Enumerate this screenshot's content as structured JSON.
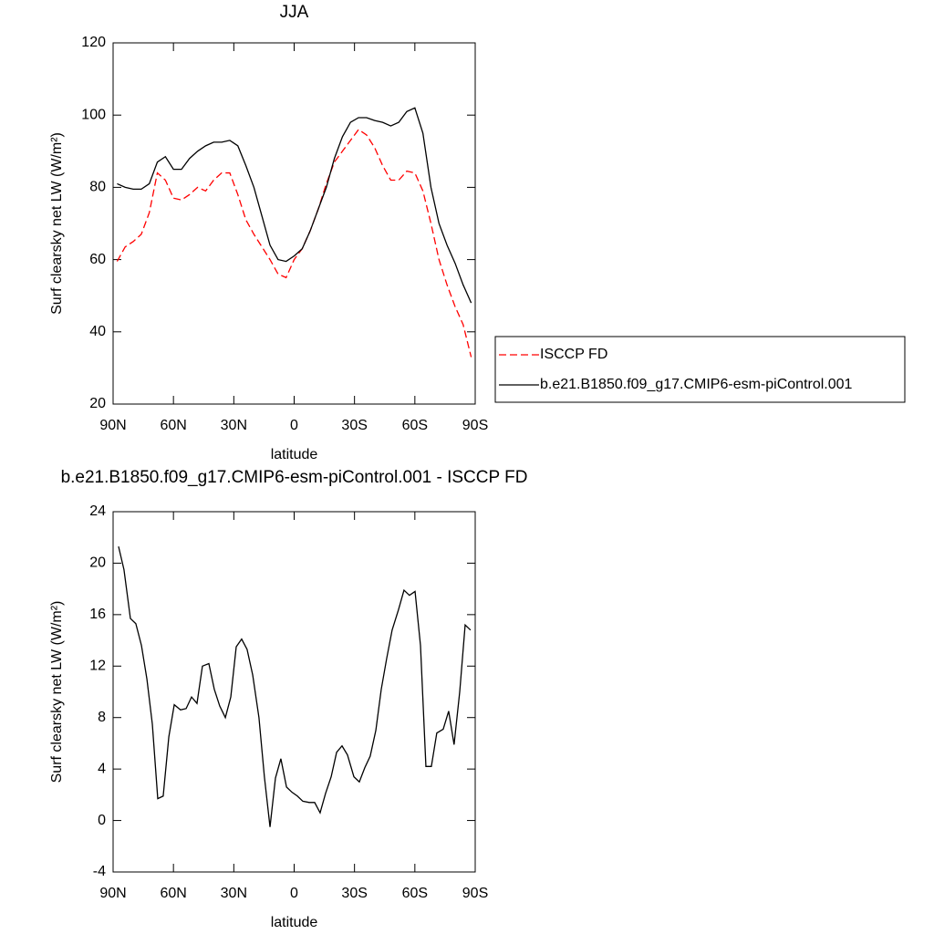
{
  "chart_data": [
    {
      "type": "line",
      "title": "JJA",
      "x_label": "latitude",
      "y_label": "Surf clearsky net LW (W/m²)",
      "x": [
        88,
        84,
        80,
        76,
        72,
        68,
        64,
        60,
        56,
        52,
        48,
        44,
        40,
        36,
        32,
        28,
        24,
        20,
        16,
        12,
        8,
        4,
        0,
        -4,
        -8,
        -12,
        -16,
        -20,
        -24,
        -28,
        -32,
        -36,
        -40,
        -44,
        -48,
        -52,
        -56,
        -60,
        -64,
        -68,
        -72,
        -76,
        -80,
        -84,
        -88
      ],
      "series": [
        {
          "name": "ISCCP FD",
          "color": "#ff0000",
          "line_style": "dashed",
          "values": [
            59.5,
            63.5,
            65,
            67,
            73,
            84,
            82,
            77,
            76.5,
            78,
            80,
            79,
            82,
            84,
            84,
            78,
            71,
            67,
            63.5,
            60,
            56,
            55,
            60,
            63,
            68,
            74,
            81,
            87,
            90,
            93,
            96,
            94.5,
            91,
            86,
            82,
            82,
            84.5,
            84,
            79,
            70,
            60,
            53,
            47,
            42,
            33
          ]
        },
        {
          "name": "b.e21.B1850.f09_g17.CMIP6-esm-piControl.001",
          "color": "#000000",
          "line_style": "solid",
          "values": [
            81,
            80,
            79.5,
            79.5,
            81,
            87,
            88.5,
            85,
            85,
            88,
            90,
            91.5,
            92.5,
            92.5,
            93,
            91.5,
            86,
            80,
            72,
            64,
            60,
            59.5,
            61,
            63,
            68,
            74,
            80,
            88,
            94,
            98,
            99.3,
            99.3,
            98.5,
            98,
            97,
            98,
            101,
            102,
            95,
            80,
            70,
            64,
            59,
            53,
            48
          ]
        }
      ],
      "xlim": [
        90,
        -90
      ],
      "xticks": [
        {
          "value": 90,
          "label": "90N"
        },
        {
          "value": 60,
          "label": "60N"
        },
        {
          "value": 30,
          "label": "30N"
        },
        0,
        {
          "value": -30,
          "label": "30S"
        },
        {
          "value": -60,
          "label": "60S"
        },
        {
          "value": -90,
          "label": "90S"
        }
      ],
      "ylim": [
        20,
        120
      ],
      "yticks": [
        20,
        40,
        60,
        80,
        100,
        120
      ],
      "grid": false,
      "legend": "right"
    },
    {
      "type": "line",
      "title": "b.e21.B1850.f09_g17.CMIP6-esm-piControl.001 - ISCCP FD",
      "x_label": "latitude",
      "y_label": "Surf clearsky net LW (W/m²)",
      "x": [
        87.3,
        84.6,
        81.4,
        78.7,
        75.9,
        73.2,
        70.5,
        67.8,
        65.1,
        62.3,
        59.6,
        56.5,
        53.7,
        51,
        48.3,
        45.6,
        42.4,
        39.7,
        37,
        34.2,
        31.5,
        28.8,
        26.1,
        23.4,
        20.6,
        17.5,
        14.8,
        12,
        9.3,
        6.6,
        3.8,
        1.1,
        -1.6,
        -4.3,
        -7.5,
        -10.2,
        -12.9,
        -15.6,
        -18.4,
        -21.1,
        -23.8,
        -26.5,
        -29.7,
        -32.4,
        -35.1,
        -37.8,
        -40.6,
        -43.3,
        -46,
        -48.7,
        -51.9,
        -54.6,
        -57.3,
        -60.1,
        -62.8,
        -65.5,
        -68.2,
        -70.9,
        -74.1,
        -76.8,
        -79.5,
        -82.3,
        -85,
        -87.7
      ],
      "series": [
        {
          "color": "#000000",
          "line_style": "solid",
          "values": [
            21.3,
            19.5,
            15.7,
            15.3,
            13.6,
            11,
            7.5,
            1.7,
            1.9,
            6.5,
            9,
            8.6,
            8.7,
            9.6,
            9.1,
            12,
            12.2,
            10.2,
            8.9,
            8,
            9.6,
            13.5,
            14.1,
            13.3,
            11.3,
            8,
            3.4,
            -0.5,
            3.3,
            4.8,
            2.6,
            2.2,
            1.9,
            1.5,
            1.4,
            1.4,
            0.6,
            2.1,
            3.4,
            5.3,
            5.8,
            5.1,
            3.4,
            3,
            4.1,
            5,
            7,
            10.2,
            12.6,
            14.8,
            16.4,
            17.9,
            17.5,
            17.8,
            13.6,
            4.2,
            4.2,
            6.8,
            7.1,
            8.5,
            5.9,
            10,
            15.2,
            14.8
          ]
        }
      ],
      "xlim": [
        90,
        -90
      ],
      "xticks": [
        {
          "value": 90,
          "label": "90N"
        },
        {
          "value": 60,
          "label": "60N"
        },
        {
          "value": 30,
          "label": "30N"
        },
        0,
        {
          "value": -30,
          "label": "30S"
        },
        {
          "value": -60,
          "label": "60S"
        },
        {
          "value": -90,
          "label": "90S"
        }
      ],
      "ylim": [
        -4,
        24
      ],
      "yticks": [
        -4,
        0,
        4,
        8,
        12,
        16,
        20,
        24
      ],
      "grid": false
    }
  ]
}
